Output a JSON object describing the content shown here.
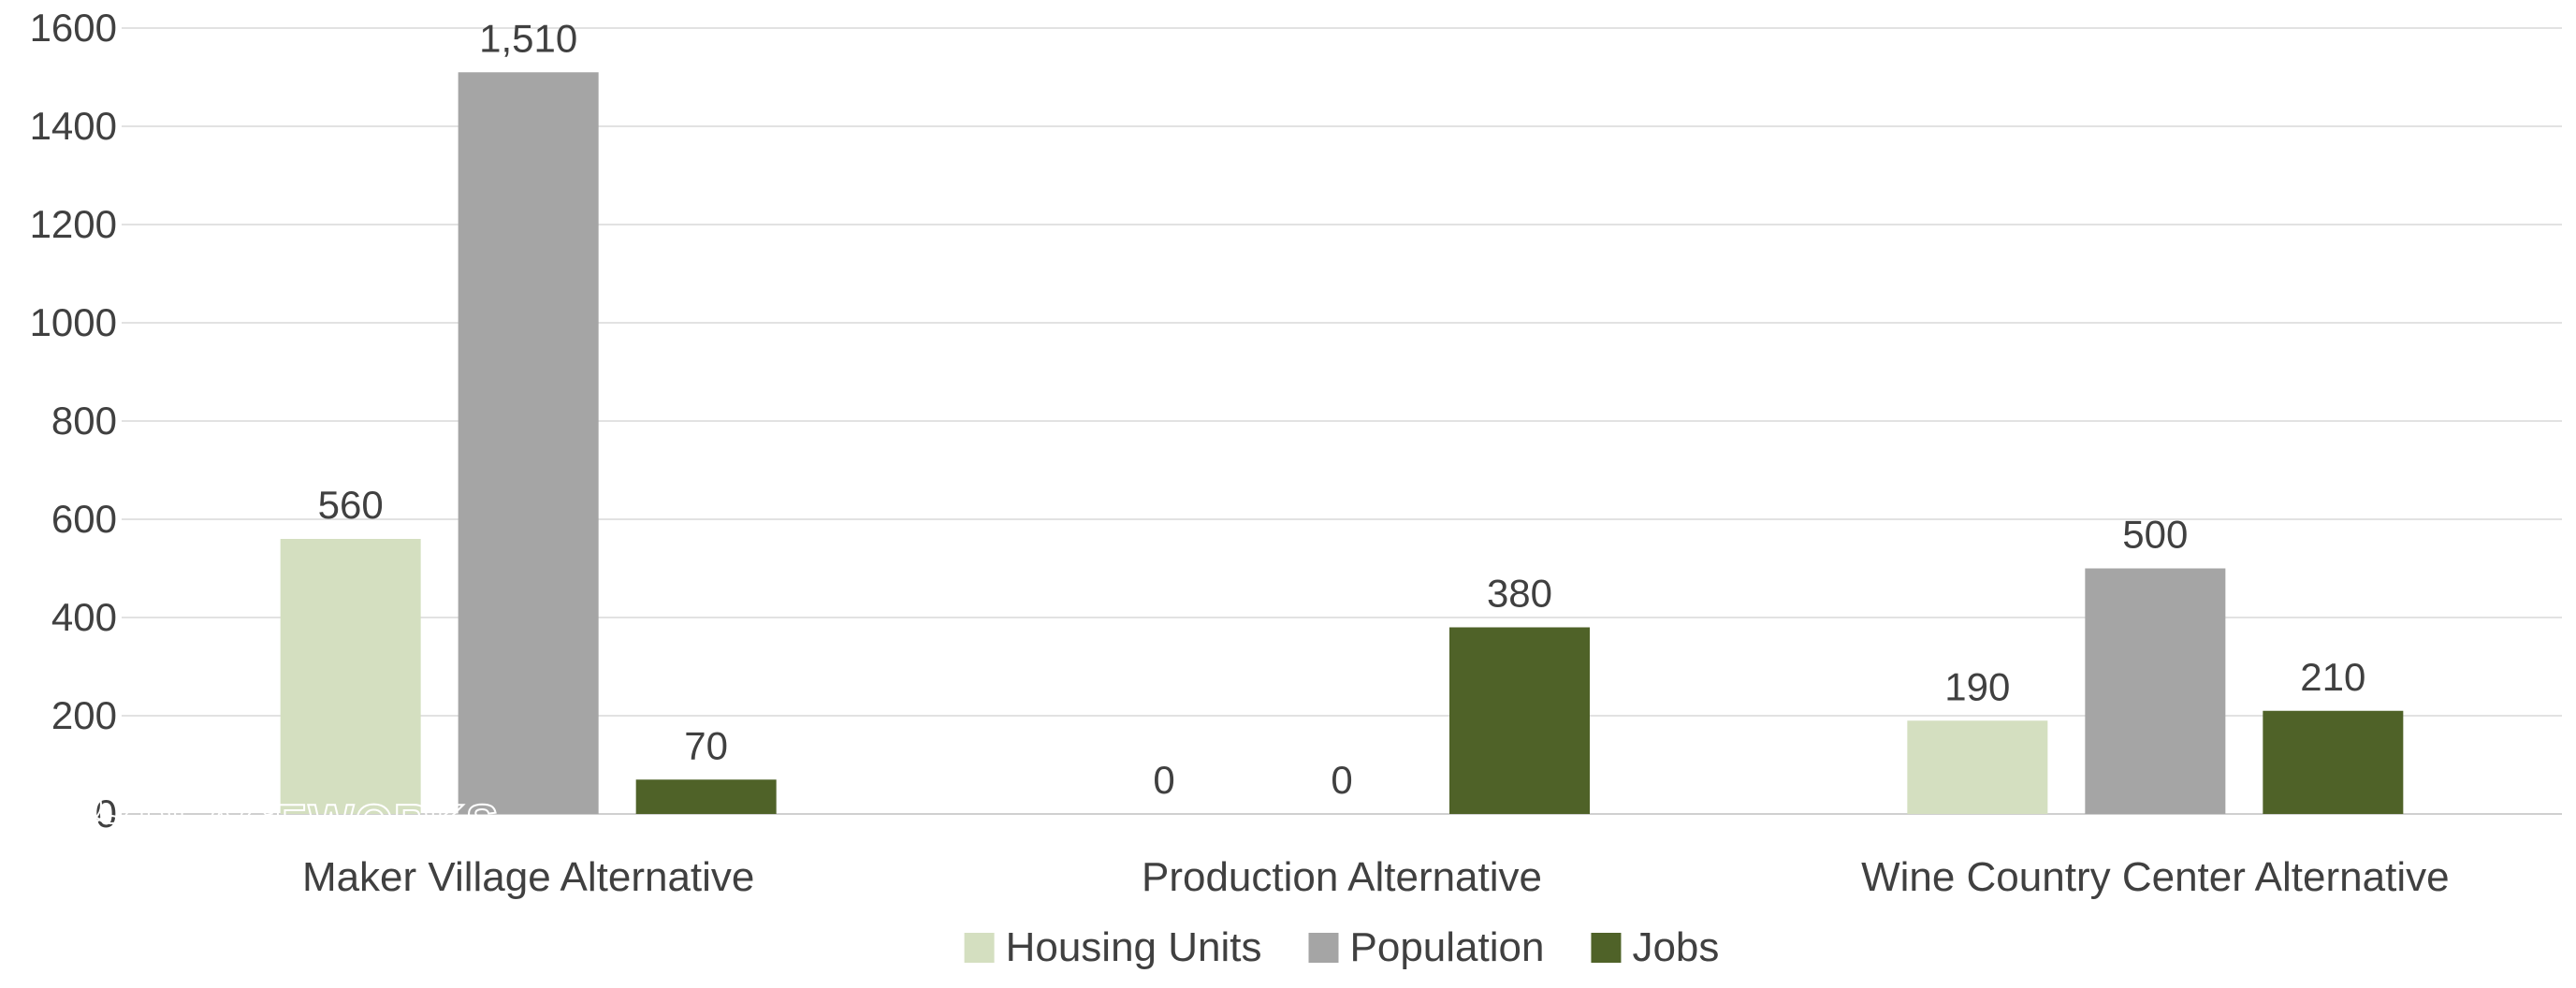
{
  "chart_data": {
    "type": "bar",
    "categories": [
      "Maker Village Alternative",
      "Production Alternative",
      "Wine Country Center Alternative"
    ],
    "series": [
      {
        "name": "Housing Units",
        "values": [
          560,
          0,
          190
        ],
        "labels": [
          "560",
          "0",
          "190"
        ]
      },
      {
        "name": "Population",
        "values": [
          1510,
          0,
          500
        ],
        "labels": [
          "1,510",
          "0",
          "500"
        ]
      },
      {
        "name": "Jobs",
        "values": [
          70,
          380,
          210
        ],
        "labels": [
          "70",
          "380",
          "210"
        ]
      }
    ],
    "ylim": [
      0,
      1600
    ],
    "yticks": [
      "0",
      "200",
      "400",
      "600",
      "800",
      "1000",
      "1200",
      "1400",
      "1600"
    ],
    "grid": true,
    "legend_position": "bottom-center",
    "colors": [
      "#d4dfc0",
      "#a5a5a5",
      "#4f6228"
    ],
    "title": "",
    "xlabel": "",
    "ylabel": ""
  },
  "watermark": {
    "text": "PLACEWORKS"
  }
}
